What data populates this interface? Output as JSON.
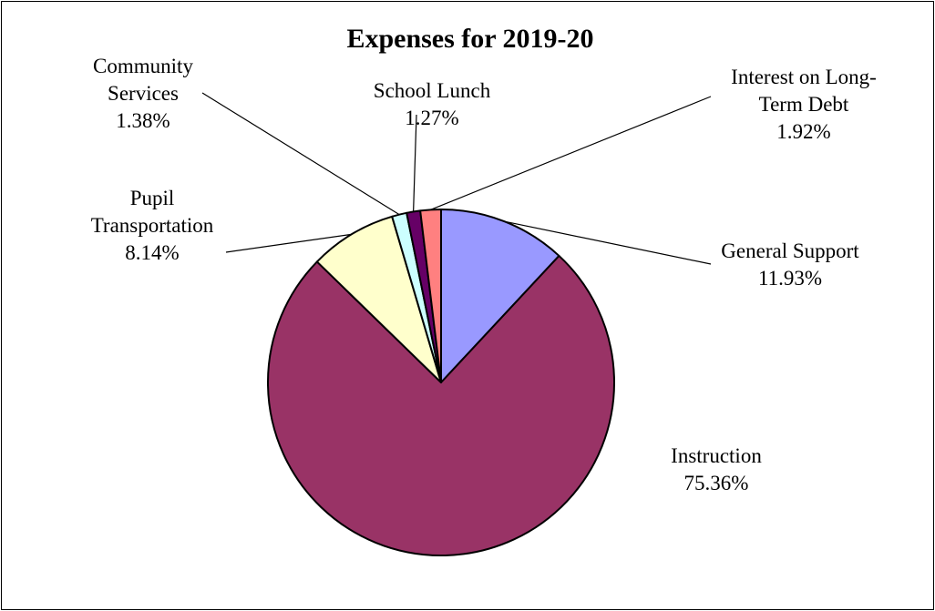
{
  "chart_data": {
    "type": "pie",
    "title": "Expenses for 2019-20",
    "start_angle_deg": 0,
    "direction": "clockwise",
    "legend": "none",
    "slices": [
      {
        "name": "General Support",
        "label_lines": [
          "General Support"
        ],
        "percent_label": "11.93%",
        "value": 11.93,
        "color": "#9999ff"
      },
      {
        "name": "Instruction",
        "label_lines": [
          "Instruction"
        ],
        "percent_label": "75.36%",
        "value": 75.36,
        "color": "#993366"
      },
      {
        "name": "Pupil Transportation",
        "label_lines": [
          "Pupil",
          "Transportation"
        ],
        "percent_label": "8.14%",
        "value": 8.14,
        "color": "#ffffcc"
      },
      {
        "name": "Community Services",
        "label_lines": [
          "Community",
          "Services"
        ],
        "percent_label": "1.38%",
        "value": 1.38,
        "color": "#ccffff"
      },
      {
        "name": "School Lunch",
        "label_lines": [
          "School Lunch"
        ],
        "percent_label": "1.27%",
        "value": 1.27,
        "color": "#660066"
      },
      {
        "name": "Interest on Long-Term Debt",
        "label_lines": [
          "Interest on Long-",
          "Term Debt"
        ],
        "percent_label": "1.92%",
        "value": 1.92,
        "color": "#ff8080"
      }
    ]
  }
}
